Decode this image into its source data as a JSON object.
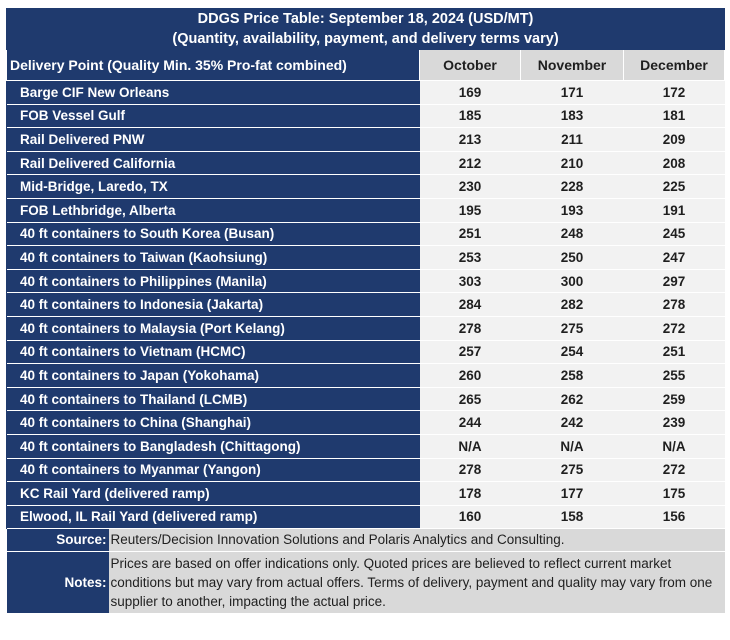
{
  "title_line1": "DDGS Price Table: September 18, 2024 (USD/MT)",
  "title_line2": "(Quantity, availability, payment, and delivery terms vary)",
  "header": {
    "delivery_point": "Delivery Point (Quality Min. 35% Pro-fat combined)",
    "months": [
      "October",
      "November",
      "December"
    ]
  },
  "rows": [
    {
      "point": "Barge CIF New Orleans",
      "values": [
        "169",
        "171",
        "172"
      ]
    },
    {
      "point": "FOB Vessel Gulf",
      "values": [
        "185",
        "183",
        "181"
      ]
    },
    {
      "point": "Rail Delivered PNW",
      "values": [
        "213",
        "211",
        "209"
      ]
    },
    {
      "point": "Rail Delivered California",
      "values": [
        "212",
        "210",
        "208"
      ]
    },
    {
      "point": "Mid-Bridge, Laredo, TX",
      "values": [
        "230",
        "228",
        "225"
      ]
    },
    {
      "point": "FOB Lethbridge, Alberta",
      "values": [
        "195",
        "193",
        "191"
      ]
    },
    {
      "point": "40 ft containers to South Korea (Busan)",
      "values": [
        "251",
        "248",
        "245"
      ]
    },
    {
      "point": "40 ft containers to Taiwan (Kaohsiung)",
      "values": [
        "253",
        "250",
        "247"
      ]
    },
    {
      "point": "40 ft containers to Philippines (Manila)",
      "values": [
        "303",
        "300",
        "297"
      ]
    },
    {
      "point": "40 ft containers to Indonesia (Jakarta)",
      "values": [
        "284",
        "282",
        "278"
      ]
    },
    {
      "point": "40 ft containers to Malaysia (Port Kelang)",
      "values": [
        "278",
        "275",
        "272"
      ]
    },
    {
      "point": "40 ft containers to Vietnam (HCMC)",
      "values": [
        "257",
        "254",
        "251"
      ]
    },
    {
      "point": "40 ft containers to Japan (Yokohama)",
      "values": [
        "260",
        "258",
        "255"
      ]
    },
    {
      "point": "40 ft containers to Thailand (LCMB)",
      "values": [
        "265",
        "262",
        "259"
      ]
    },
    {
      "point": "40 ft containers to China (Shanghai)",
      "values": [
        "244",
        "242",
        "239"
      ]
    },
    {
      "point": "40 ft containers to Bangladesh (Chittagong)",
      "values": [
        "N/A",
        "N/A",
        "N/A"
      ]
    },
    {
      "point": "40 ft containers to Myanmar (Yangon)",
      "values": [
        "278",
        "275",
        "272"
      ]
    },
    {
      "point": "KC Rail Yard (delivered ramp)",
      "values": [
        "178",
        "177",
        "175"
      ]
    },
    {
      "point": "Elwood, IL Rail Yard (delivered ramp)",
      "values": [
        "160",
        "158",
        "156"
      ]
    }
  ],
  "footer": {
    "source_label": "Source:",
    "source_text": "Reuters/Decision Innovation Solutions and Polaris Analytics and Consulting.",
    "notes_label": "Notes:",
    "notes_text": "Prices are based on offer indications only. Quoted prices are believed to reflect current market conditions but may vary from actual offers. Terms of delivery, payment and quality may vary from one supplier to another, impacting the actual price."
  },
  "colors": {
    "navy": "#1f3a6e",
    "header_gray": "#d9d9d9",
    "value_gray": "#f2f2f2"
  }
}
